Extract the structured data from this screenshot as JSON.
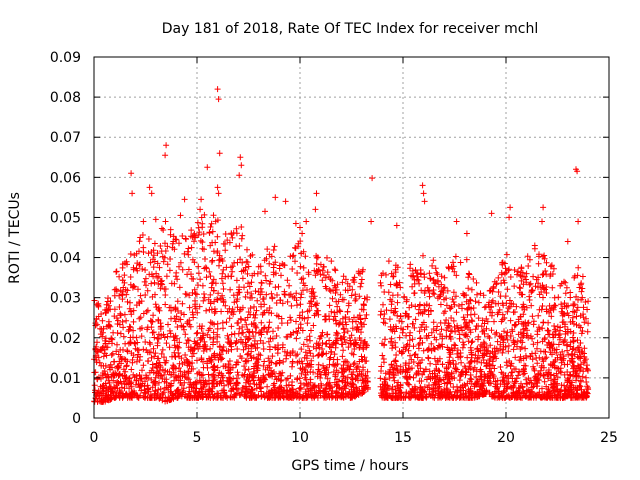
{
  "chart_data": {
    "type": "scatter",
    "title": "Day 181 of 2018, Rate Of TEC Index for receiver mchl",
    "xlabel": "GPS time / hours",
    "ylabel": "ROTI / TECUs",
    "xlim": [
      0,
      25
    ],
    "ylim": [
      0,
      0.09
    ],
    "xticks": [
      0,
      5,
      10,
      15,
      20,
      25
    ],
    "xtick_labels": [
      "0",
      "5",
      "10",
      "15",
      "20",
      "25"
    ],
    "yticks": [
      0,
      0.01,
      0.02,
      0.03,
      0.04,
      0.05,
      0.06,
      0.07,
      0.08,
      0.09
    ],
    "ytick_labels": [
      "0",
      "0.01",
      "0.02",
      "0.03",
      "0.04",
      "0.05",
      "0.06",
      "0.07",
      "0.08",
      "0.09"
    ],
    "grid": true,
    "marker": "+",
    "color": "#ff0000",
    "series": [
      {
        "name": "ROTI",
        "envelope": {
          "x": [
            0,
            0.5,
            1,
            1.5,
            2,
            2.5,
            3,
            3.5,
            4,
            4.5,
            5,
            5.5,
            6,
            6.5,
            7,
            7.5,
            8,
            8.5,
            9,
            9.5,
            10,
            10.5,
            11,
            11.5,
            12,
            12.5,
            13,
            13.5,
            14,
            14.5,
            15,
            15.5,
            16,
            16.5,
            17,
            17.5,
            18,
            18.5,
            19,
            19.5,
            20,
            20.5,
            21,
            21.5,
            22,
            22.5,
            23,
            23.5,
            24
          ],
          "upper": [
            0.032,
            0.03,
            0.036,
            0.04,
            0.045,
            0.048,
            0.044,
            0.05,
            0.046,
            0.045,
            0.05,
            0.052,
            0.05,
            0.046,
            0.05,
            0.042,
            0.04,
            0.044,
            0.042,
            0.04,
            0.046,
            0.04,
            0.042,
            0.04,
            0.036,
            0.034,
            0.038,
            0.03,
            0.038,
            0.04,
            0.036,
            0.04,
            0.042,
            0.04,
            0.038,
            0.04,
            0.042,
            0.036,
            0.03,
            0.035,
            0.042,
            0.036,
            0.04,
            0.043,
            0.04,
            0.036,
            0.034,
            0.04,
            0.032
          ],
          "lower": [
            0.004,
            0.004,
            0.005,
            0.005,
            0.005,
            0.005,
            0.005,
            0.004,
            0.005,
            0.005,
            0.005,
            0.005,
            0.005,
            0.005,
            0.005,
            0.005,
            0.005,
            0.005,
            0.005,
            0.005,
            0.005,
            0.005,
            0.005,
            0.005,
            0.005,
            0.005,
            0.006,
            0.008,
            0.005,
            0.005,
            0.005,
            0.005,
            0.005,
            0.005,
            0.005,
            0.005,
            0.005,
            0.005,
            0.006,
            0.005,
            0.005,
            0.005,
            0.005,
            0.005,
            0.005,
            0.005,
            0.005,
            0.005,
            0.005
          ]
        },
        "gaps": [
          [
            13.3,
            13.9
          ]
        ],
        "outliers": [
          [
            6.0,
            0.082
          ],
          [
            6.05,
            0.0795
          ],
          [
            6.1,
            0.066
          ],
          [
            3.5,
            0.068
          ],
          [
            3.45,
            0.0655
          ],
          [
            1.8,
            0.061
          ],
          [
            1.85,
            0.056
          ],
          [
            7.1,
            0.065
          ],
          [
            7.15,
            0.063
          ],
          [
            7.05,
            0.0605
          ],
          [
            13.5,
            0.0598
          ],
          [
            15.95,
            0.058
          ],
          [
            16.0,
            0.056
          ],
          [
            16.05,
            0.054
          ],
          [
            23.4,
            0.062
          ],
          [
            23.45,
            0.0615
          ],
          [
            23.5,
            0.049
          ],
          [
            5.5,
            0.0625
          ],
          [
            5.2,
            0.0545
          ],
          [
            5.15,
            0.052
          ],
          [
            6.0,
            0.0575
          ],
          [
            6.05,
            0.056
          ],
          [
            8.8,
            0.055
          ],
          [
            10.8,
            0.056
          ],
          [
            10.75,
            0.052
          ],
          [
            13.45,
            0.049
          ],
          [
            19.3,
            0.051
          ],
          [
            20.2,
            0.0525
          ],
          [
            20.15,
            0.05
          ],
          [
            21.8,
            0.0525
          ],
          [
            21.75,
            0.049
          ],
          [
            2.7,
            0.0575
          ],
          [
            2.8,
            0.056
          ],
          [
            4.4,
            0.0545
          ],
          [
            4.2,
            0.0505
          ],
          [
            9.3,
            0.054
          ],
          [
            10.3,
            0.049
          ],
          [
            9.8,
            0.0485
          ],
          [
            10.1,
            0.046
          ],
          [
            10.0,
            0.0475
          ],
          [
            8.3,
            0.0515
          ],
          [
            3.0,
            0.0495
          ],
          [
            2.4,
            0.049
          ],
          [
            14.7,
            0.048
          ],
          [
            17.6,
            0.049
          ],
          [
            18.1,
            0.046
          ],
          [
            21.4,
            0.043
          ],
          [
            23.0,
            0.044
          ]
        ]
      }
    ]
  }
}
